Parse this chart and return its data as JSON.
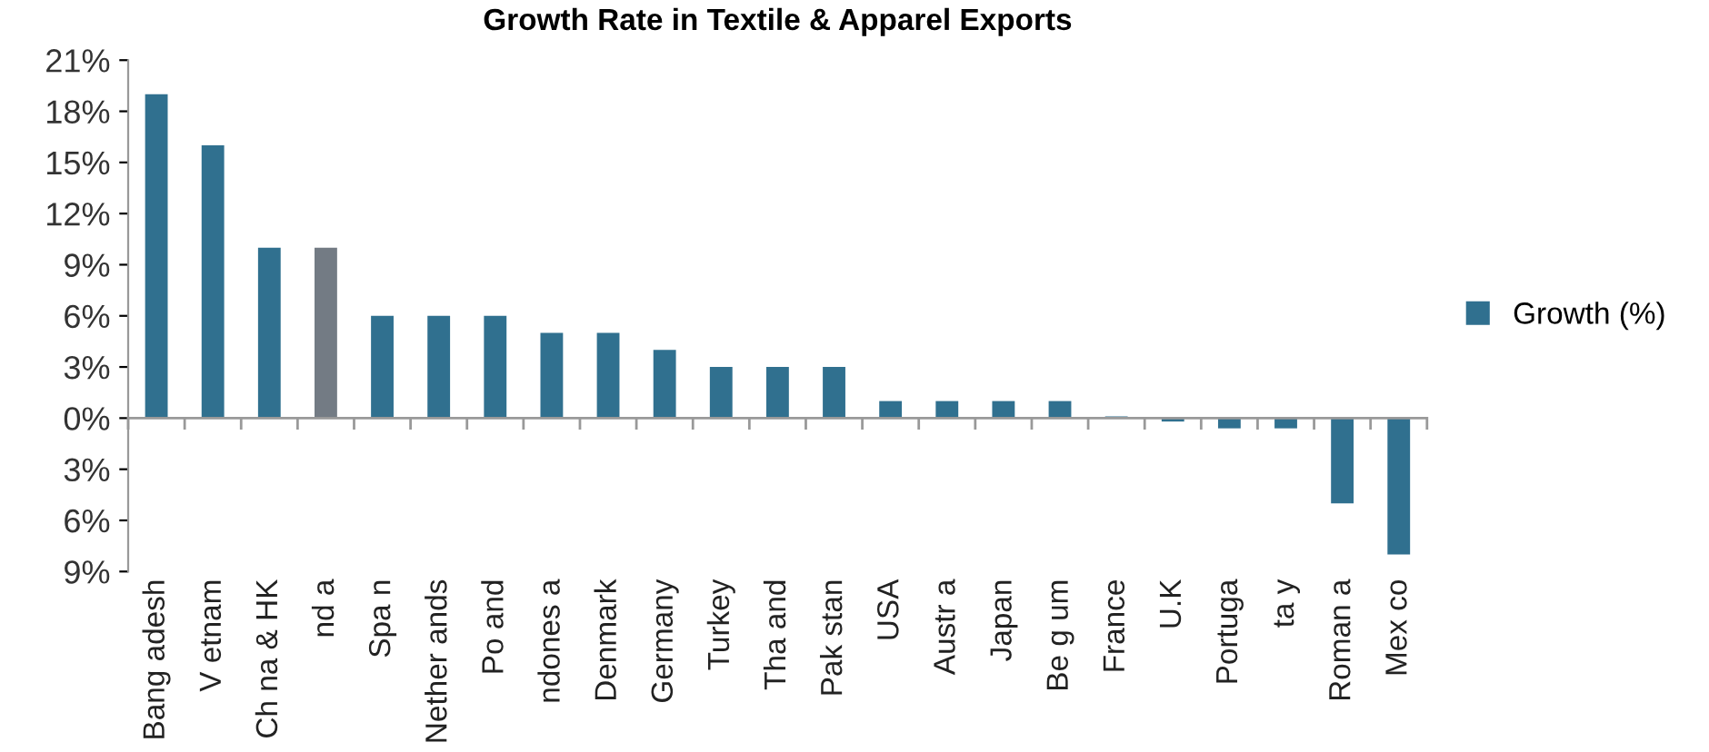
{
  "chart_data": {
    "type": "bar",
    "title": "Growth Rate in Textile & Apparel Exports",
    "categories": [
      "Bang adesh",
      "V etnam",
      "Ch na & HK",
      "nd a",
      "Spa n",
      "Nether ands",
      "Po and",
      "ndones a",
      "Denmark",
      "Germany",
      "Turkey",
      "Tha and",
      "Pak stan",
      "USA",
      "Austr a",
      "Japan",
      "Be g um",
      "France",
      "U.K",
      "Portuga",
      "ta y",
      "Roman a",
      "Mex co"
    ],
    "series": [
      {
        "name": "Growth (%)",
        "color": "#30708f",
        "values": [
          19,
          16,
          10,
          10,
          6,
          6,
          6,
          5,
          5,
          4,
          3,
          3,
          3,
          1,
          1,
          1,
          1,
          0.1,
          -0.2,
          -0.6,
          -0.6,
          -5,
          -8
        ],
        "colors": [
          "#30708f",
          "#30708f",
          "#30708f",
          "#737b84",
          "#30708f",
          "#30708f",
          "#30708f",
          "#30708f",
          "#30708f",
          "#30708f",
          "#30708f",
          "#30708f",
          "#30708f",
          "#30708f",
          "#30708f",
          "#30708f",
          "#30708f",
          "#30708f",
          "#30708f",
          "#30708f",
          "#30708f",
          "#30708f",
          "#30708f"
        ]
      }
    ],
    "ylim": [
      -9,
      21
    ],
    "yticks": [
      {
        "value": -9,
        "label": "9%"
      },
      {
        "value": -6,
        "label": "6%"
      },
      {
        "value": -3,
        "label": "3%"
      },
      {
        "value": 0,
        "label": "0%"
      },
      {
        "value": 3,
        "label": "3%"
      },
      {
        "value": 6,
        "label": "6%"
      },
      {
        "value": 9,
        "label": "9%"
      },
      {
        "value": 12,
        "label": "12%"
      },
      {
        "value": 15,
        "label": "15%"
      },
      {
        "value": 18,
        "label": "18%"
      },
      {
        "value": 21,
        "label": "21%"
      }
    ],
    "ref_lines": [
      {
        "axis": "y",
        "value": 0,
        "color": "#999999"
      }
    ],
    "grid": false,
    "legend": "right"
  }
}
